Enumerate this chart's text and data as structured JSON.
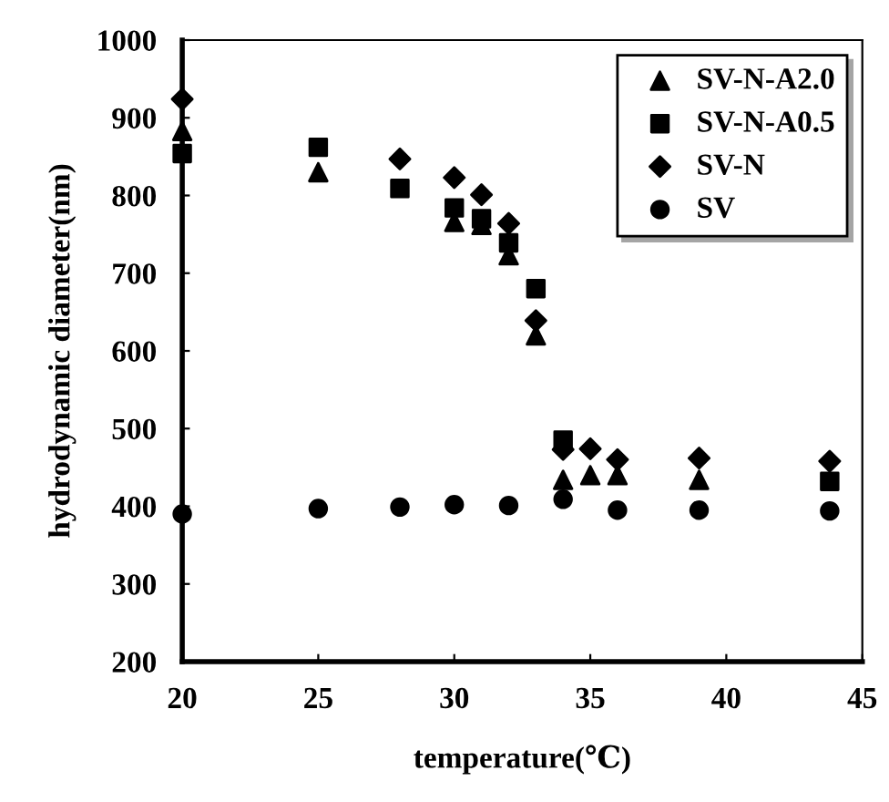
{
  "chart_data": {
    "type": "scatter",
    "xlabel": "temperature(℃)",
    "ylabel": "hydrodynamic diameter(nm)",
    "x": [
      20,
      25,
      28,
      30,
      31,
      32,
      33,
      34,
      35,
      36,
      39,
      43.8
    ],
    "xlim": [
      20,
      45
    ],
    "xticks": [
      20,
      25,
      30,
      35,
      40,
      45
    ],
    "ylim": [
      200,
      1000
    ],
    "yticks": [
      200,
      300,
      400,
      500,
      600,
      700,
      800,
      900,
      1000
    ],
    "grid": false,
    "legend": "top right",
    "series": [
      {
        "name": "SV-N-A2.0",
        "color": "#000000",
        "marker": "triangle",
        "values": [
          883,
          830,
          null,
          766,
          762,
          723,
          620,
          434,
          440,
          440,
          434,
          null
        ]
      },
      {
        "name": "SV-N-A0.5",
        "color": "#000000",
        "marker": "square",
        "values": [
          854,
          862,
          809,
          784,
          770,
          739,
          680,
          485,
          null,
          null,
          null,
          432
        ]
      },
      {
        "name": "SV-N",
        "color": "#000000",
        "marker": "diamond",
        "values": [
          924,
          null,
          847,
          823,
          801,
          764,
          639,
          473,
          474,
          460,
          462,
          458
        ]
      },
      {
        "name": "SV",
        "color": "#000000",
        "marker": "circle",
        "values": [
          390,
          397,
          399,
          402,
          null,
          401,
          null,
          409,
          null,
          395,
          395,
          394
        ]
      }
    ]
  }
}
